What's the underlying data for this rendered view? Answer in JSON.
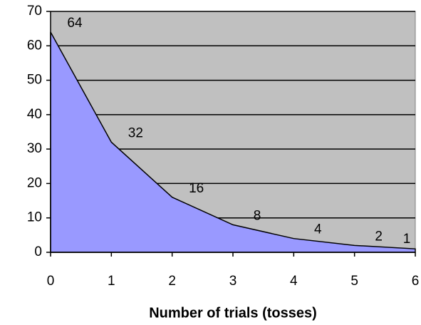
{
  "chart_data": {
    "type": "area",
    "x_label": "Number of trials (tosses)",
    "x": [
      0,
      1,
      2,
      3,
      4,
      5,
      6
    ],
    "series": [
      {
        "color": "#9999ff",
        "values": [
          64,
          32,
          16,
          8,
          4,
          2,
          1
        ]
      }
    ],
    "xlim": [
      0,
      6
    ],
    "xticks": [
      0,
      1,
      2,
      3,
      4,
      5,
      6
    ],
    "ylim": [
      0,
      70
    ],
    "yticks": [
      0,
      10,
      20,
      30,
      40,
      50,
      60,
      70
    ],
    "grid": true,
    "plot_background": "#c0c0c0"
  }
}
